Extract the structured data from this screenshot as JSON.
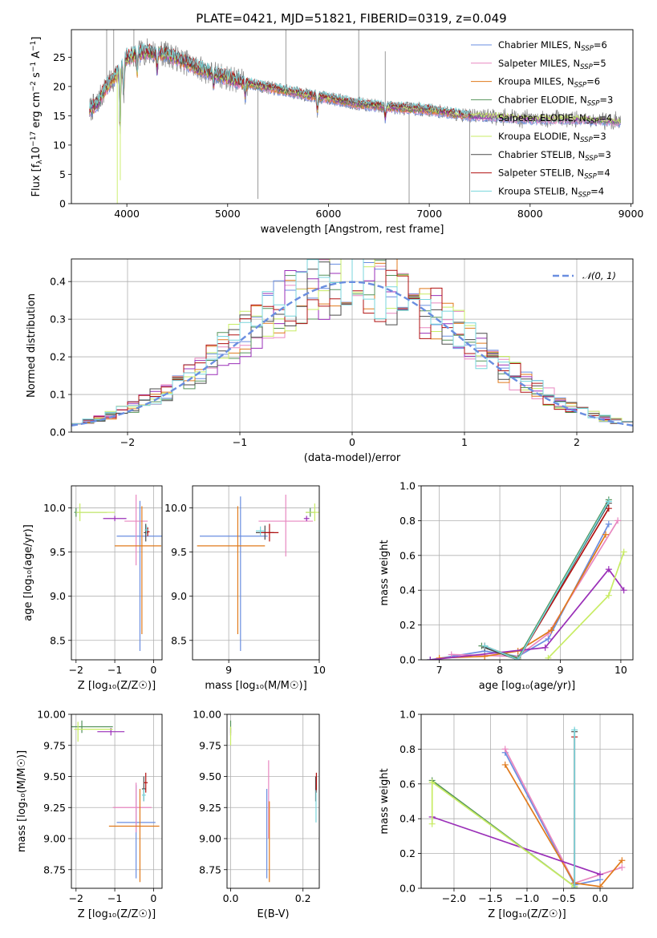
{
  "figure": {
    "title": "PLATE=0421, MJD=51821, FIBERID=0319, z=0.049"
  },
  "colors": {
    "Chabrier MILES": "#6a8ee0",
    "Salpeter MILES": "#e887c0",
    "Kroupa MILES": "#e07a1c",
    "Chabrier ELODIE": "#55935a",
    "Salpeter ELODIE": "#9a2fb8",
    "Kroupa ELODIE": "#c8ec64",
    "Chabrier STELIB": "#4a4a4a",
    "Salpeter STELIB": "#b01010",
    "Kroupa STELIB": "#78d6dc",
    "data": "#808080",
    "normal": "#6a8ee0"
  },
  "chart_data": [
    {
      "id": "spectrum",
      "type": "line",
      "title": "PLATE=0421, MJD=51821, FIBERID=0319, z=0.049",
      "xlabel": "wavelength [Angstrom, rest frame]",
      "ylabel_parts": [
        "Flux [f",
        "λ",
        "10",
        "−17",
        " erg cm",
        "−2",
        " s",
        "−1",
        " A",
        "−1",
        "]"
      ],
      "xlim": [
        3450,
        9020
      ],
      "ylim": [
        0,
        29.7
      ],
      "xticks": [
        4000,
        5000,
        6000,
        7000,
        8000,
        9000
      ],
      "yticks": [
        0,
        5,
        10,
        15,
        20,
        25
      ],
      "continuum_knots": [
        [
          3630,
          16
        ],
        [
          3700,
          17
        ],
        [
          3800,
          20
        ],
        [
          3900,
          22
        ],
        [
          4000,
          25
        ],
        [
          4100,
          25.5
        ],
        [
          4200,
          26
        ],
        [
          4400,
          25.5
        ],
        [
          4600,
          24
        ],
        [
          4800,
          22.5
        ],
        [
          5000,
          21.5
        ],
        [
          5200,
          20.5
        ],
        [
          5500,
          19.5
        ],
        [
          5800,
          18.5
        ],
        [
          6000,
          18
        ],
        [
          6300,
          17
        ],
        [
          6600,
          16.5
        ],
        [
          7000,
          16
        ],
        [
          7400,
          15
        ],
        [
          7600,
          15
        ],
        [
          8000,
          14.5
        ],
        [
          8500,
          14.5
        ],
        [
          8900,
          14
        ]
      ],
      "absorption_features": [
        [
          3933,
          10
        ],
        [
          3968,
          6
        ],
        [
          4102,
          3
        ],
        [
          4300,
          3
        ],
        [
          4861,
          2
        ],
        [
          5175,
          2
        ],
        [
          5890,
          2.5
        ],
        [
          6563,
          2
        ]
      ],
      "data_spikes": [
        [
          3800,
          29.7
        ],
        [
          3870,
          29.7
        ],
        [
          4070,
          29.7
        ],
        [
          5300,
          0.8
        ],
        [
          5577,
          29.7
        ],
        [
          6300,
          29.7
        ],
        [
          6563,
          26
        ],
        [
          6800,
          0
        ],
        [
          7400,
          0
        ]
      ],
      "series": [
        {
          "name": "Chabrier MILES",
          "nssp": "6"
        },
        {
          "name": "Salpeter MILES",
          "nssp": "5"
        },
        {
          "name": "Kroupa MILES",
          "nssp": "6"
        },
        {
          "name": "Chabrier ELODIE",
          "nssp": "3"
        },
        {
          "name": "Salpeter ELODIE",
          "nssp": "4"
        },
        {
          "name": "Kroupa ELODIE",
          "nssp": "3"
        },
        {
          "name": "Chabrier STELIB",
          "nssp": "3"
        },
        {
          "name": "Salpeter STELIB",
          "nssp": "4"
        },
        {
          "name": "Kroupa STELIB",
          "nssp": "4"
        }
      ],
      "legend_position": "upper right"
    },
    {
      "id": "residuals",
      "type": "histogram",
      "xlabel": "(data-model)/error",
      "ylabel": "Normed distribution",
      "xlim": [
        -2.5,
        2.5
      ],
      "ylim": [
        0,
        0.46
      ],
      "xticks": [
        -2,
        -1,
        0,
        1,
        2
      ],
      "yticks": [
        0.0,
        0.1,
        0.2,
        0.3,
        0.4
      ],
      "bin_width": 0.1,
      "grid": true,
      "legend": [
        {
          "name": "𝒩(0, 1)",
          "style": "dashed"
        }
      ],
      "legend_position": "upper right",
      "normal_curve": {
        "mean": 0,
        "sigma": 1
      }
    },
    {
      "id": "age-metal",
      "type": "errorbar",
      "xlabel": "Z [log₁₀(Z/Z☉)]",
      "ylabel": "age [log₁₀(age/yr)]",
      "xlim": [
        -2.12,
        0.22
      ],
      "ylim": [
        8.28,
        10.25
      ],
      "xticks": [
        -2,
        -1,
        0
      ],
      "yticks": [
        8.5,
        9.0,
        9.5,
        10.0
      ],
      "points": [
        {
          "series": "Chabrier MILES",
          "x": -0.35,
          "y": 9.68,
          "xerr": [
            0.6,
            0.6
          ],
          "yerr": [
            1.3,
            0.4
          ]
        },
        {
          "series": "Salpeter MILES",
          "x": -0.45,
          "y": 9.85,
          "xerr": [
            0.3,
            0.3
          ],
          "yerr": [
            0.5,
            0.3
          ]
        },
        {
          "series": "Kroupa MILES",
          "x": -0.3,
          "y": 9.57,
          "xerr": [
            0.7,
            0.5
          ],
          "yerr": [
            1.0,
            0.45
          ]
        },
        {
          "series": "Chabrier ELODIE",
          "x": -2.0,
          "y": 9.95,
          "xerr": [
            0.05,
            0.8
          ],
          "yerr": [
            0.05,
            0.05
          ]
        },
        {
          "series": "Salpeter ELODIE",
          "x": -1.0,
          "y": 9.88,
          "xerr": [
            0.3,
            0.3
          ],
          "yerr": [
            0.03,
            0.03
          ]
        },
        {
          "series": "Kroupa ELODIE",
          "x": -1.9,
          "y": 9.95,
          "xerr": [
            0.1,
            0.9
          ],
          "yerr": [
            0.1,
            0.1
          ]
        },
        {
          "series": "Chabrier STELIB",
          "x": -0.2,
          "y": 9.72,
          "xerr": [
            0.05,
            0.05
          ],
          "yerr": [
            0.1,
            0.1
          ]
        },
        {
          "series": "Salpeter STELIB",
          "x": -0.15,
          "y": 9.73,
          "xerr": [
            0.05,
            0.05
          ],
          "yerr": [
            0.05,
            0.05
          ]
        },
        {
          "series": "Kroupa STELIB",
          "x": -0.18,
          "y": 9.75,
          "xerr": [
            0.05,
            0.05
          ],
          "yerr": [
            0.05,
            0.05
          ]
        }
      ]
    },
    {
      "id": "age-mass",
      "type": "errorbar",
      "xlabel": "mass [log₁₀(M/M☉)]",
      "ylabel": "",
      "xlim": [
        8.6,
        10.0
      ],
      "ylim": [
        8.28,
        10.25
      ],
      "xticks": [
        9,
        10
      ],
      "yticks": [
        8.5,
        9.0,
        9.5,
        10.0
      ],
      "points": [
        {
          "series": "Chabrier MILES",
          "x": 9.13,
          "y": 9.68,
          "xerr": [
            0.45,
            0.3
          ],
          "yerr": [
            1.3,
            0.45
          ]
        },
        {
          "series": "Salpeter MILES",
          "x": 9.63,
          "y": 9.85,
          "xerr": [
            0.3,
            0.3
          ],
          "yerr": [
            0.4,
            0.3
          ]
        },
        {
          "series": "Kroupa MILES",
          "x": 9.1,
          "y": 9.57,
          "xerr": [
            0.45,
            0.3
          ],
          "yerr": [
            1.0,
            0.45
          ]
        },
        {
          "series": "Chabrier ELODIE",
          "x": 9.9,
          "y": 9.95,
          "xerr": [
            0.05,
            0.05
          ],
          "yerr": [
            0.05,
            0.05
          ]
        },
        {
          "series": "Salpeter ELODIE",
          "x": 9.86,
          "y": 9.88,
          "xerr": [
            0.03,
            0.03
          ],
          "yerr": [
            0.03,
            0.03
          ]
        },
        {
          "series": "Kroupa ELODIE",
          "x": 9.95,
          "y": 9.95,
          "xerr": [
            0.1,
            0.1
          ],
          "yerr": [
            0.1,
            0.1
          ]
        },
        {
          "series": "Chabrier STELIB",
          "x": 9.4,
          "y": 9.72,
          "xerr": [
            0.1,
            0.1
          ],
          "yerr": [
            0.08,
            0.08
          ]
        },
        {
          "series": "Salpeter STELIB",
          "x": 9.45,
          "y": 9.72,
          "xerr": [
            0.1,
            0.1
          ],
          "yerr": [
            0.1,
            0.1
          ]
        },
        {
          "series": "Kroupa STELIB",
          "x": 9.35,
          "y": 9.74,
          "xerr": [
            0.05,
            0.05
          ],
          "yerr": [
            0.05,
            0.05
          ]
        }
      ]
    },
    {
      "id": "weight-age",
      "type": "line",
      "xlabel": "age [log₁₀(age/yr)]",
      "ylabel": "mass weight",
      "xlim": [
        6.7,
        10.2
      ],
      "ylim": [
        0,
        1.0
      ],
      "xticks": [
        7,
        8,
        9,
        10
      ],
      "yticks": [
        0.0,
        0.2,
        0.4,
        0.6,
        0.8,
        1.0
      ],
      "series": [
        {
          "name": "Chabrier MILES",
          "x": [
            6.85,
            7.75,
            8.3,
            8.8,
            9.8
          ],
          "y": [
            0.0,
            0.05,
            0.02,
            0.12,
            0.78
          ]
        },
        {
          "name": "Salpeter MILES",
          "x": [
            7.2,
            8.3,
            8.8,
            9.95
          ],
          "y": [
            0.03,
            0.02,
            0.15,
            0.8
          ]
        },
        {
          "name": "Kroupa MILES",
          "x": [
            7.0,
            7.75,
            8.3,
            8.85,
            9.75
          ],
          "y": [
            0.01,
            0.02,
            0.05,
            0.17,
            0.72
          ]
        },
        {
          "name": "Chabrier ELODIE",
          "x": [
            7.7,
            8.3,
            9.8
          ],
          "y": [
            0.08,
            0.01,
            0.92
          ]
        },
        {
          "name": "Salpeter ELODIE",
          "x": [
            6.85,
            8.75,
            9.8,
            10.05
          ],
          "y": [
            0.0,
            0.07,
            0.52,
            0.4
          ]
        },
        {
          "name": "Kroupa ELODIE",
          "x": [
            8.8,
            9.8,
            10.05
          ],
          "y": [
            0.01,
            0.37,
            0.62
          ]
        },
        {
          "name": "Chabrier STELIB",
          "x": [
            7.75,
            8.3,
            9.8
          ],
          "y": [
            0.07,
            0.0,
            0.9
          ]
        },
        {
          "name": "Salpeter STELIB",
          "x": [
            7.75,
            8.3,
            9.8
          ],
          "y": [
            0.08,
            0.0,
            0.87
          ]
        },
        {
          "name": "Kroupa STELIB",
          "x": [
            7.75,
            8.3,
            9.8
          ],
          "y": [
            0.08,
            0.0,
            0.91
          ]
        }
      ]
    },
    {
      "id": "mass-metal",
      "type": "errorbar",
      "xlabel": "Z [log₁₀(Z/Z☉)]",
      "ylabel": "mass [log₁₀(M/M☉)]",
      "xlim": [
        -2.12,
        0.22
      ],
      "ylim": [
        8.6,
        10.0
      ],
      "xticks": [
        -2,
        -1,
        0
      ],
      "yticks": [
        8.75,
        9.0,
        9.25,
        9.5,
        9.75,
        10.0
      ],
      "points": [
        {
          "series": "Chabrier MILES",
          "x": -0.45,
          "y": 9.13,
          "xerr": [
            0.5,
            0.5
          ],
          "yerr": [
            0.45,
            0.3
          ]
        },
        {
          "series": "Salpeter MILES",
          "x": -0.45,
          "y": 9.25,
          "xerr": [
            0.6,
            0.4
          ],
          "yerr": [
            0.2,
            0.2
          ]
        },
        {
          "series": "Kroupa MILES",
          "x": -0.35,
          "y": 9.1,
          "xerr": [
            0.8,
            0.5
          ],
          "yerr": [
            0.45,
            0.3
          ]
        },
        {
          "series": "Chabrier ELODIE",
          "x": -1.85,
          "y": 9.9,
          "xerr": [
            0.3,
            0.8
          ],
          "yerr": [
            0.05,
            0.05
          ]
        },
        {
          "series": "Salpeter ELODIE",
          "x": -1.1,
          "y": 9.86,
          "xerr": [
            0.35,
            0.35
          ],
          "yerr": [
            0.03,
            0.03
          ]
        },
        {
          "series": "Kroupa ELODIE",
          "x": -1.95,
          "y": 9.88,
          "xerr": [
            0.1,
            0.9
          ],
          "yerr": [
            0.1,
            0.06
          ]
        },
        {
          "series": "Chabrier STELIB",
          "x": -0.25,
          "y": 9.4,
          "xerr": [
            0.05,
            0.05
          ],
          "yerr": [
            0.1,
            0.1
          ]
        },
        {
          "series": "Salpeter STELIB",
          "x": -0.2,
          "y": 9.45,
          "xerr": [
            0.05,
            0.05
          ],
          "yerr": [
            0.08,
            0.08
          ]
        },
        {
          "series": "Kroupa STELIB",
          "x": -0.25,
          "y": 9.35,
          "xerr": [
            0.05,
            0.05
          ],
          "yerr": [
            0.05,
            0.05
          ]
        }
      ]
    },
    {
      "id": "mass-ebv",
      "type": "errorbar",
      "xlabel": "E(B-V)",
      "ylabel": "",
      "xlim": [
        -0.01,
        0.245
      ],
      "ylim": [
        8.6,
        10.0
      ],
      "xticks": [
        0.0,
        0.2
      ],
      "yticks": [
        8.75,
        9.0,
        9.25,
        9.5,
        9.75,
        10.0
      ],
      "points": [
        {
          "series": "Chabrier MILES",
          "x": 0.1,
          "y": 9.13,
          "xerr": [
            0,
            0
          ],
          "yerr": [
            0.45,
            0.27
          ]
        },
        {
          "series": "Salpeter MILES",
          "x": 0.105,
          "y": 9.25,
          "xerr": [
            0,
            0
          ],
          "yerr": [
            0.25,
            0.38
          ]
        },
        {
          "series": "Kroupa MILES",
          "x": 0.107,
          "y": 9.1,
          "xerr": [
            0,
            0
          ],
          "yerr": [
            0.45,
            0.2
          ]
        },
        {
          "series": "Chabrier ELODIE",
          "x": 0.0,
          "y": 9.9,
          "xerr": [
            0,
            0
          ],
          "yerr": [
            0.05,
            0.05
          ]
        },
        {
          "series": "Salpeter ELODIE",
          "x": 0.0,
          "y": 9.86,
          "xerr": [
            0,
            0
          ],
          "yerr": [
            0.03,
            0.03
          ]
        },
        {
          "series": "Kroupa ELODIE",
          "x": 0.0,
          "y": 9.85,
          "xerr": [
            0,
            0
          ],
          "yerr": [
            0.1,
            0.05
          ]
        },
        {
          "series": "Chabrier STELIB",
          "x": 0.235,
          "y": 9.4,
          "xerr": [
            0,
            0
          ],
          "yerr": [
            0.1,
            0.1
          ]
        },
        {
          "series": "Salpeter STELIB",
          "x": 0.237,
          "y": 9.45,
          "xerr": [
            0,
            0
          ],
          "yerr": [
            0.08,
            0.08
          ]
        },
        {
          "series": "Kroupa STELIB",
          "x": 0.236,
          "y": 9.25,
          "xerr": [
            0,
            0
          ],
          "yerr": [
            0.12,
            0.14
          ]
        }
      ]
    },
    {
      "id": "weight-metal",
      "type": "line",
      "xlabel": "Z [log₁₀(Z/Z☉)]",
      "ylabel": "mass weight",
      "xlim": [
        -2.45,
        0.45
      ],
      "ylim": [
        0,
        1.0
      ],
      "xticks": [
        -2.0,
        -1.5,
        -1.0,
        -0.5,
        0.0
      ],
      "yticks": [
        0.0,
        0.2,
        0.4,
        0.6,
        0.8,
        1.0
      ],
      "series": [
        {
          "name": "Chabrier MILES",
          "x": [
            -1.3,
            -0.35,
            0.0
          ],
          "y": [
            0.78,
            0.02,
            0.05
          ]
        },
        {
          "name": "Salpeter MILES",
          "x": [
            -1.3,
            -0.35,
            0.3
          ],
          "y": [
            0.8,
            0.03,
            0.12
          ]
        },
        {
          "name": "Kroupa MILES",
          "x": [
            -1.3,
            -0.35,
            0.0,
            0.3
          ],
          "y": [
            0.71,
            0.03,
            0.01,
            0.16
          ]
        },
        {
          "name": "Chabrier ELODIE",
          "x": [
            -2.3,
            -0.35
          ],
          "y": [
            0.62,
            0.01
          ]
        },
        {
          "name": "Salpeter ELODIE",
          "x": [
            -2.3,
            0.0
          ],
          "y": [
            0.41,
            0.08
          ]
        },
        {
          "name": "Kroupa ELODIE",
          "x": [
            -2.3,
            -2.3,
            -0.35
          ],
          "y": [
            0.37,
            0.61,
            0.01
          ]
        },
        {
          "name": "Chabrier STELIB",
          "x": [
            -0.35,
            -0.35
          ],
          "y": [
            0.9,
            0.0
          ]
        },
        {
          "name": "Salpeter STELIB",
          "x": [
            -0.35,
            -0.35
          ],
          "y": [
            0.87,
            0.0
          ]
        },
        {
          "name": "Kroupa STELIB",
          "x": [
            -0.35,
            -0.35
          ],
          "y": [
            0.91,
            0.0
          ]
        }
      ]
    }
  ]
}
